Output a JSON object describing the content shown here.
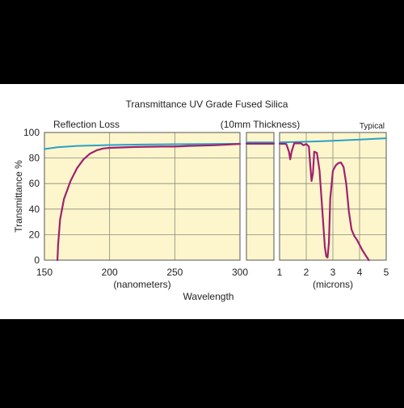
{
  "chart_data": {
    "type": "line",
    "title": "Transmittance UV Grade Fused Silica",
    "ylabel": "Transmittance %",
    "xlabel": "Wavelength",
    "annotations": {
      "reflection_loss": "Reflection Loss",
      "thickness": "(10mm Thickness)",
      "typical": "Typical"
    },
    "ylim": [
      0,
      100
    ],
    "yticks": [
      "0",
      "20",
      "40",
      "60",
      "80",
      "100"
    ],
    "colors": {
      "page_background": "#000000",
      "card_background": "#ffffff",
      "plot_background": "#fdf6cc",
      "grid": "#8a8a7a",
      "reflection_loss_line": "#2aa0c8",
      "transmittance_line": "#a0206e"
    },
    "panels": [
      {
        "id": "uv",
        "unit_label": "(nanometers)",
        "xlim": [
          150,
          300
        ],
        "xticks": [
          {
            "value": 150,
            "label": "150"
          },
          {
            "value": 200,
            "label": "200"
          },
          {
            "value": 250,
            "label": "250"
          },
          {
            "value": 300,
            "label": "300"
          }
        ],
        "series": [
          {
            "id": "reflection_loss",
            "values": [
              [
                150,
                87
              ],
              [
                160,
                88.5
              ],
              [
                175,
                89.5
              ],
              [
                200,
                90.2
              ],
              [
                225,
                90.6
              ],
              [
                250,
                90.8
              ],
              [
                275,
                91
              ],
              [
                300,
                91.2
              ]
            ]
          },
          {
            "id": "transmittance",
            "values": [
              [
                160,
                0
              ],
              [
                160.5,
                12
              ],
              [
                162,
                32
              ],
              [
                165,
                48
              ],
              [
                170,
                62
              ],
              [
                175,
                72
              ],
              [
                180,
                79
              ],
              [
                185,
                83.5
              ],
              [
                190,
                86
              ],
              [
                195,
                87.5
              ],
              [
                200,
                88
              ],
              [
                220,
                88.7
              ],
              [
                240,
                89
              ],
              [
                250,
                89
              ],
              [
                260,
                89.5
              ],
              [
                280,
                90
              ],
              [
                300,
                91
              ]
            ]
          }
        ]
      },
      {
        "id": "mid",
        "unit_label": "",
        "xlim": [
          0,
          1
        ],
        "xticks": [],
        "series": [
          {
            "id": "reflection_loss",
            "values": [
              [
                0,
                92.2
              ],
              [
                1,
                92.2
              ]
            ]
          },
          {
            "id": "transmittance",
            "values": [
              [
                0,
                91.2
              ],
              [
                1,
                91.2
              ]
            ]
          }
        ]
      },
      {
        "id": "ir",
        "unit_label": "(microns)",
        "xlim": [
          1,
          5
        ],
        "xticks": [
          {
            "value": 1,
            "label": "1"
          },
          {
            "value": 2,
            "label": "2"
          },
          {
            "value": 3,
            "label": "3"
          },
          {
            "value": 4,
            "label": "4"
          },
          {
            "value": 5,
            "label": "5"
          }
        ],
        "series": [
          {
            "id": "reflection_loss",
            "values": [
              [
                1,
                92.2
              ],
              [
                2,
                92.8
              ],
              [
                3,
                93.5
              ],
              [
                4,
                94.5
              ],
              [
                5,
                95.5
              ]
            ]
          },
          {
            "id": "transmittance",
            "values": [
              [
                1,
                91.2
              ],
              [
                1.25,
                91
              ],
              [
                1.35,
                85
              ],
              [
                1.4,
                79
              ],
              [
                1.45,
                85
              ],
              [
                1.55,
                91.5
              ],
              [
                1.8,
                91.5
              ],
              [
                1.9,
                90
              ],
              [
                2.0,
                91
              ],
              [
                2.1,
                89
              ],
              [
                2.15,
                75
              ],
              [
                2.2,
                62
              ],
              [
                2.25,
                68
              ],
              [
                2.3,
                85
              ],
              [
                2.4,
                84
              ],
              [
                2.5,
                70
              ],
              [
                2.6,
                40
              ],
              [
                2.7,
                10
              ],
              [
                2.75,
                3
              ],
              [
                2.8,
                2
              ],
              [
                2.85,
                14
              ],
              [
                2.9,
                48
              ],
              [
                3.0,
                70
              ],
              [
                3.1,
                74
              ],
              [
                3.2,
                76
              ],
              [
                3.3,
                76.5
              ],
              [
                3.4,
                73
              ],
              [
                3.5,
                60
              ],
              [
                3.6,
                38
              ],
              [
                3.7,
                24
              ],
              [
                3.8,
                19
              ],
              [
                3.9,
                16
              ],
              [
                4.0,
                12
              ],
              [
                4.1,
                8
              ],
              [
                4.25,
                3
              ],
              [
                4.35,
                0
              ]
            ]
          }
        ]
      }
    ]
  }
}
